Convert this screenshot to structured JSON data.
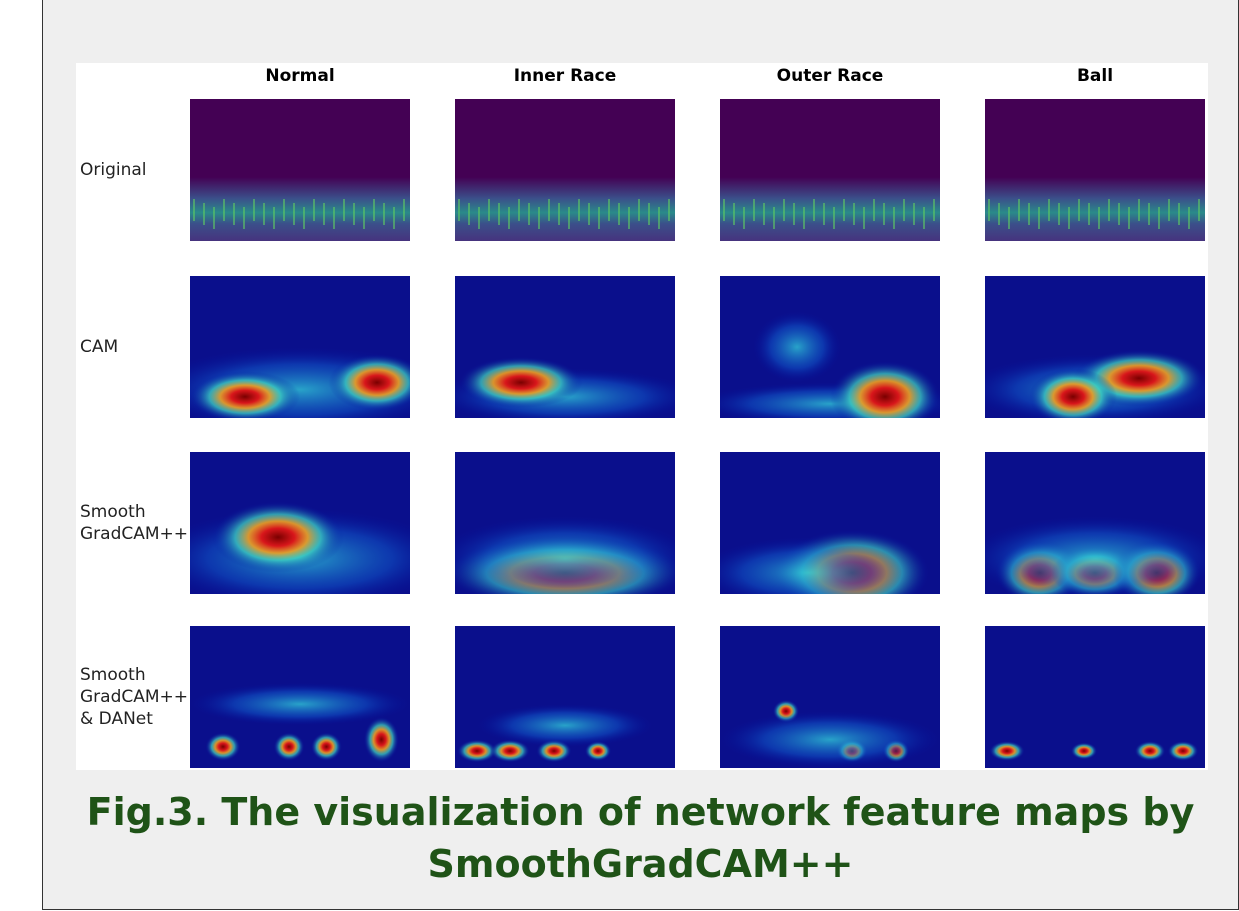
{
  "columns": [
    "Normal",
    "Inner Race",
    "Outer Race",
    "Ball"
  ],
  "rows": [
    [
      "Original"
    ],
    [
      "CAM"
    ],
    [
      "Smooth",
      "GradCAM++"
    ],
    [
      "Smooth",
      "GradCAM++",
      "& DANet"
    ]
  ],
  "caption": [
    "Fig.3. The visualization of network feature maps by",
    "SmoothGradCAM++"
  ]
}
